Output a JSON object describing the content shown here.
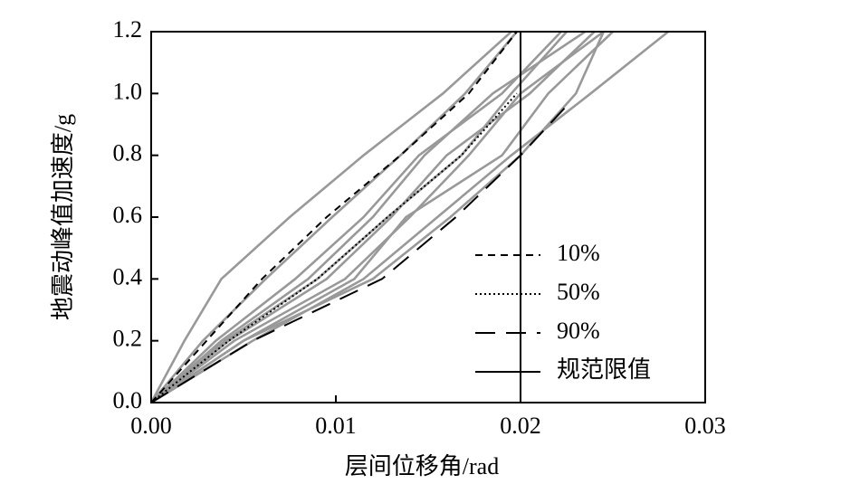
{
  "chart_data": {
    "type": "line",
    "x_label": "层间位移角/rad",
    "y_label": "地震动峰值加速度/g",
    "xlim": [
      0,
      0.03
    ],
    "ylim": [
      0,
      1.2
    ],
    "xticks": [
      {
        "value": 0,
        "label": "0.00"
      },
      0.01,
      0.02,
      0.03
    ],
    "yticks": [
      {
        "value": 0,
        "label": "0.0"
      },
      0.2,
      0.4,
      0.6,
      0.8,
      {
        "value": 1,
        "label": "1.0"
      },
      1.2
    ],
    "legend": "lower right",
    "series": [
      {
        "color": "#999999",
        "style": "solid",
        "x": [
          0,
          0.0018,
          0.0038,
          0.0075,
          0.0115,
          0.0158,
          0.0195
        ],
        "values": [
          0,
          0.2,
          0.4,
          0.6,
          0.8,
          1.0,
          1.2
        ]
      },
      {
        "color": "#999999",
        "style": "solid",
        "x": [
          0,
          0.0028,
          0.0062,
          0.0098,
          0.0135,
          0.017,
          0.0198
        ],
        "values": [
          0,
          0.2,
          0.4,
          0.6,
          0.8,
          1.0,
          1.2
        ]
      },
      {
        "color": "#999999",
        "style": "solid",
        "x": [
          0,
          0.0035,
          0.0078,
          0.0115,
          0.0145,
          0.019,
          0.0222
        ],
        "values": [
          0,
          0.2,
          0.4,
          0.6,
          0.8,
          1.0,
          1.2
        ]
      },
      {
        "color": "#999999",
        "style": "solid",
        "x": [
          0,
          0.0038,
          0.0085,
          0.012,
          0.0148,
          0.0185,
          0.0235
        ],
        "values": [
          0,
          0.2,
          0.4,
          0.6,
          0.8,
          1.0,
          1.2
        ]
      },
      {
        "color": "#999999",
        "style": "solid",
        "x": [
          0,
          0.004,
          0.009,
          0.0128,
          0.0168,
          0.0195,
          0.0225
        ],
        "values": [
          0,
          0.2,
          0.4,
          0.6,
          0.8,
          1.0,
          1.2
        ]
      },
      {
        "color": "#999999",
        "style": "solid",
        "x": [
          0,
          0.0042,
          0.0095,
          0.013,
          0.016,
          0.0205,
          0.024
        ],
        "values": [
          0,
          0.2,
          0.4,
          0.6,
          0.8,
          1.0,
          1.2
        ]
      },
      {
        "color": "#999999",
        "style": "solid",
        "x": [
          0,
          0.0045,
          0.0105,
          0.014,
          0.0172,
          0.02,
          0.0245
        ],
        "values": [
          0,
          0.2,
          0.4,
          0.6,
          0.8,
          1.0,
          1.2
        ]
      },
      {
        "color": "#999999",
        "style": "solid",
        "x": [
          0,
          0.005,
          0.011,
          0.0138,
          0.019,
          0.0215,
          0.025
        ],
        "values": [
          0,
          0.2,
          0.4,
          0.6,
          0.8,
          1.0,
          1.2
        ]
      },
      {
        "color": "#999999",
        "style": "solid",
        "x": [
          0,
          0.0055,
          0.0115,
          0.0155,
          0.0195,
          0.0238,
          0.028
        ],
        "values": [
          0,
          0.2,
          0.4,
          0.6,
          0.8,
          1.0,
          1.2
        ]
      },
      {
        "color": "#999999",
        "style": "solid",
        "x": [
          0,
          0.005,
          0.012,
          0.0162,
          0.02,
          0.023,
          0.0245
        ],
        "values": [
          0,
          0.2,
          0.4,
          0.6,
          0.8,
          1.0,
          1.2
        ]
      },
      {
        "name": "10%",
        "color": "#000000",
        "style": "dashed",
        "x": [
          0,
          0.003,
          0.006,
          0.0095,
          0.0135,
          0.0172,
          0.0198
        ],
        "values": [
          0,
          0.2,
          0.4,
          0.6,
          0.8,
          1.0,
          1.2
        ]
      },
      {
        "name": "50%",
        "color": "#000000",
        "style": "dotted",
        "x": [
          0,
          0.0042,
          0.009,
          0.0128,
          0.0168,
          0.0198
        ],
        "values": [
          0,
          0.2,
          0.4,
          0.6,
          0.8,
          1.0
        ]
      },
      {
        "name": "90%",
        "color": "#000000",
        "style": "longdash",
        "x": [
          0,
          0.0055,
          0.0125,
          0.0165,
          0.02,
          0.0225
        ],
        "values": [
          0,
          0.2,
          0.4,
          0.6,
          0.8,
          0.96
        ]
      },
      {
        "name": "规范限值",
        "color": "#000000",
        "style": "solid",
        "x": [
          0.02,
          0.02
        ],
        "values": [
          0,
          1.2
        ]
      }
    ]
  }
}
